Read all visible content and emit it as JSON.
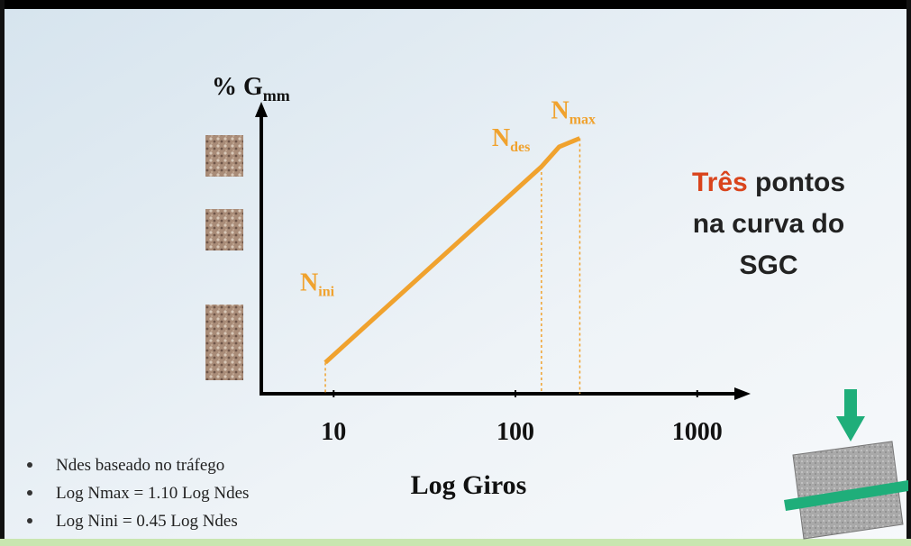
{
  "chart_data": {
    "type": "line",
    "log_x": true,
    "y_label": {
      "main": "% G",
      "sub": "mm"
    },
    "x_label": "Log Giros",
    "x": [
      9,
      139,
      174,
      226
    ],
    "values": [
      11,
      80,
      87,
      90
    ],
    "color": "#f0a22e",
    "point_labels": [
      {
        "main": "N",
        "sub": "ini"
      },
      {
        "main": "N",
        "sub": "des"
      },
      null,
      {
        "main": "N",
        "sub": "max"
      }
    ],
    "xlim": [
      4,
      1900
    ],
    "xticks": [
      10,
      100,
      1000
    ],
    "ylim": [
      0,
      100
    ],
    "annotation": {
      "highlight": "Três",
      "rest": "pontos",
      "line2": "na curva do",
      "line3": "SGC"
    },
    "notes": [
      "Ndes baseado no tráfego",
      "Log Nmax = 1.10 Log Ndes",
      "Log Nini = 0.45 Log Ndes"
    ]
  }
}
